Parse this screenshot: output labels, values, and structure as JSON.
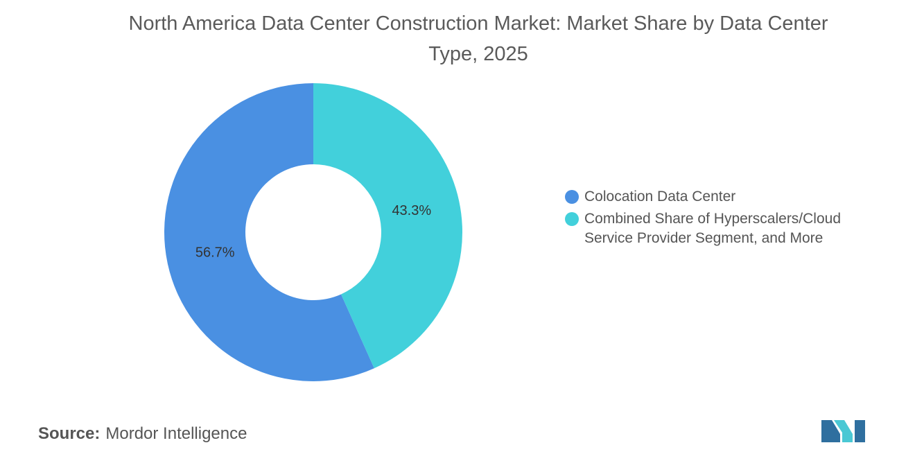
{
  "chart_data": {
    "type": "donut",
    "title": "North America Data Center Construction Market: Market Share by Data Center Type, 2025",
    "categories": [
      "Colocation Data Center",
      "Combined Share of Hyperscalers/Cloud Service Provider Segment, and More"
    ],
    "values": [
      56.7,
      43.3
    ],
    "value_labels": [
      "56.7%",
      "43.3%"
    ],
    "colors": [
      "#4a90e2",
      "#42d0db"
    ]
  },
  "source": {
    "label": "Source:",
    "text": "Mordor Intelligence"
  }
}
